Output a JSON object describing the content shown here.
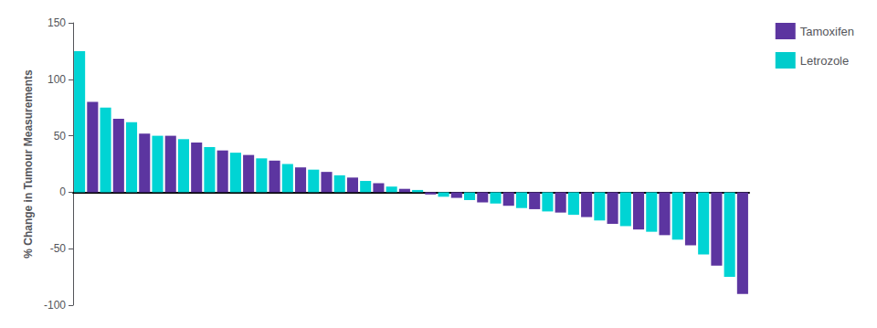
{
  "chart_data": {
    "type": "bar",
    "ylabel": "% Change in Tumour Measurements",
    "categories": [
      null,
      null,
      null,
      null,
      null,
      null,
      null,
      null,
      null,
      null,
      null,
      null,
      null,
      null,
      null,
      null,
      null,
      null,
      null,
      null,
      null,
      null,
      null,
      null,
      null,
      null,
      null,
      null,
      null,
      null,
      null,
      null,
      null,
      null,
      null,
      null,
      null,
      null,
      null,
      null,
      null,
      null,
      null,
      null,
      null,
      null,
      null,
      null,
      null,
      null,
      null,
      null
    ],
    "series": [
      {
        "name": "Tamoxifen",
        "color": "#5c35a0",
        "values": [
          null,
          80,
          null,
          65,
          null,
          52,
          null,
          50,
          null,
          44,
          null,
          37,
          null,
          33,
          null,
          28,
          null,
          22,
          null,
          18,
          null,
          13,
          null,
          8,
          null,
          3,
          null,
          -2,
          null,
          -5,
          null,
          -9,
          null,
          -12,
          null,
          -15,
          null,
          -18,
          null,
          -22,
          null,
          -28,
          null,
          -33,
          null,
          -38,
          null,
          -47,
          null,
          -65,
          null,
          -90
        ]
      },
      {
        "name": "Letrozole",
        "color": "#00cccc",
        "values": [
          125,
          null,
          75,
          null,
          62,
          null,
          50,
          null,
          47,
          null,
          40,
          null,
          35,
          null,
          30,
          null,
          25,
          null,
          20,
          null,
          15,
          null,
          10,
          null,
          5,
          null,
          2,
          null,
          -4,
          null,
          -7,
          null,
          -10,
          null,
          -14,
          null,
          -17,
          null,
          -20,
          null,
          -25,
          null,
          -30,
          null,
          -35,
          null,
          -42,
          null,
          -55,
          null,
          -75,
          null
        ]
      }
    ],
    "colors": [
      "#00d4d4",
      "#5c35a0",
      "#00d4d4",
      "#5c35a0",
      "#00d4d4",
      "#5c35a0",
      "#00d4d4",
      "#5c35a0",
      "#00d4d4",
      "#5c35a0",
      "#00d4d4",
      "#5c35a0",
      "#00d4d4",
      "#5c35a0",
      "#00d4d4",
      "#5c35a0",
      "#00d4d4",
      "#5c35a0",
      "#00d4d4",
      "#5c35a0",
      "#00d4d4",
      "#5c35a0",
      "#00d4d4",
      "#5c35a0",
      "#00d4d4",
      "#5c35a0",
      "#00d4d4",
      "#5c35a0",
      "#00d4d4",
      "#5c35a0",
      "#00d4d4",
      "#5c35a0",
      "#00d4d4",
      "#5c35a0",
      "#00d4d4",
      "#5c35a0",
      "#00d4d4",
      "#5c35a0",
      "#00d4d4",
      "#5c35a0",
      "#00d4d4",
      "#5c35a0",
      "#00d4d4",
      "#5c35a0",
      "#00d4d4",
      "#5c35a0",
      "#00d4d4",
      "#5c35a0",
      "#00d4d4",
      "#5c35a0",
      "#00d4d4",
      "#5c35a0"
    ],
    "ylim": [
      -100,
      150
    ],
    "yticks": [
      -100,
      -50,
      0,
      50,
      100,
      150
    ],
    "grid": false,
    "legend": "upper right",
    "tick_labels": "y"
  }
}
